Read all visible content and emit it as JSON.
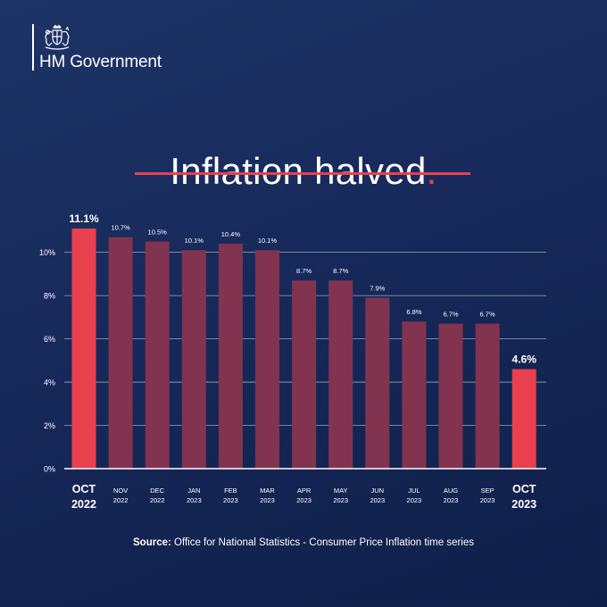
{
  "brand": {
    "name": "HM Government",
    "crest_icon": "royal-coat-of-arms-icon"
  },
  "headline": {
    "text": "Inflation halved",
    "dot": "."
  },
  "colors": {
    "highlight": "#e8404e",
    "muted_bar": "#82334f",
    "background": "#17295a"
  },
  "chart_data": {
    "type": "bar",
    "title": "Inflation halved",
    "xlabel": "",
    "ylabel": "",
    "ylim": [
      0,
      11.1
    ],
    "yticks": [
      0,
      2,
      4,
      6,
      8,
      10
    ],
    "ytick_labels": [
      "0%",
      "2%",
      "4%",
      "6%",
      "8%",
      "10%"
    ],
    "grid": true,
    "categories": [
      {
        "month": "OCT",
        "year": "2022"
      },
      {
        "month": "NOV",
        "year": "2022"
      },
      {
        "month": "DEC",
        "year": "2022"
      },
      {
        "month": "JAN",
        "year": "2023"
      },
      {
        "month": "FEB",
        "year": "2023"
      },
      {
        "month": "MAR",
        "year": "2023"
      },
      {
        "month": "APR",
        "year": "2023"
      },
      {
        "month": "MAY",
        "year": "2023"
      },
      {
        "month": "JUN",
        "year": "2023"
      },
      {
        "month": "JUL",
        "year": "2023"
      },
      {
        "month": "AUG",
        "year": "2023"
      },
      {
        "month": "SEP",
        "year": "2023"
      },
      {
        "month": "OCT",
        "year": "2023"
      }
    ],
    "values": [
      11.1,
      10.7,
      10.5,
      10.1,
      10.4,
      10.1,
      8.7,
      8.7,
      7.9,
      6.8,
      6.7,
      6.7,
      4.6
    ],
    "value_labels": [
      "11.1%",
      "10.7%",
      "10.5%",
      "10.1%",
      "10.4%",
      "10.1%",
      "8.7%",
      "8.7%",
      "7.9%",
      "6.8%",
      "6.7%",
      "6.7%",
      "4.6%"
    ],
    "highlighted": [
      0,
      12
    ]
  },
  "source": {
    "label": "Source:",
    "text": "Office for National Statistics - Consumer Price Inflation time series"
  }
}
